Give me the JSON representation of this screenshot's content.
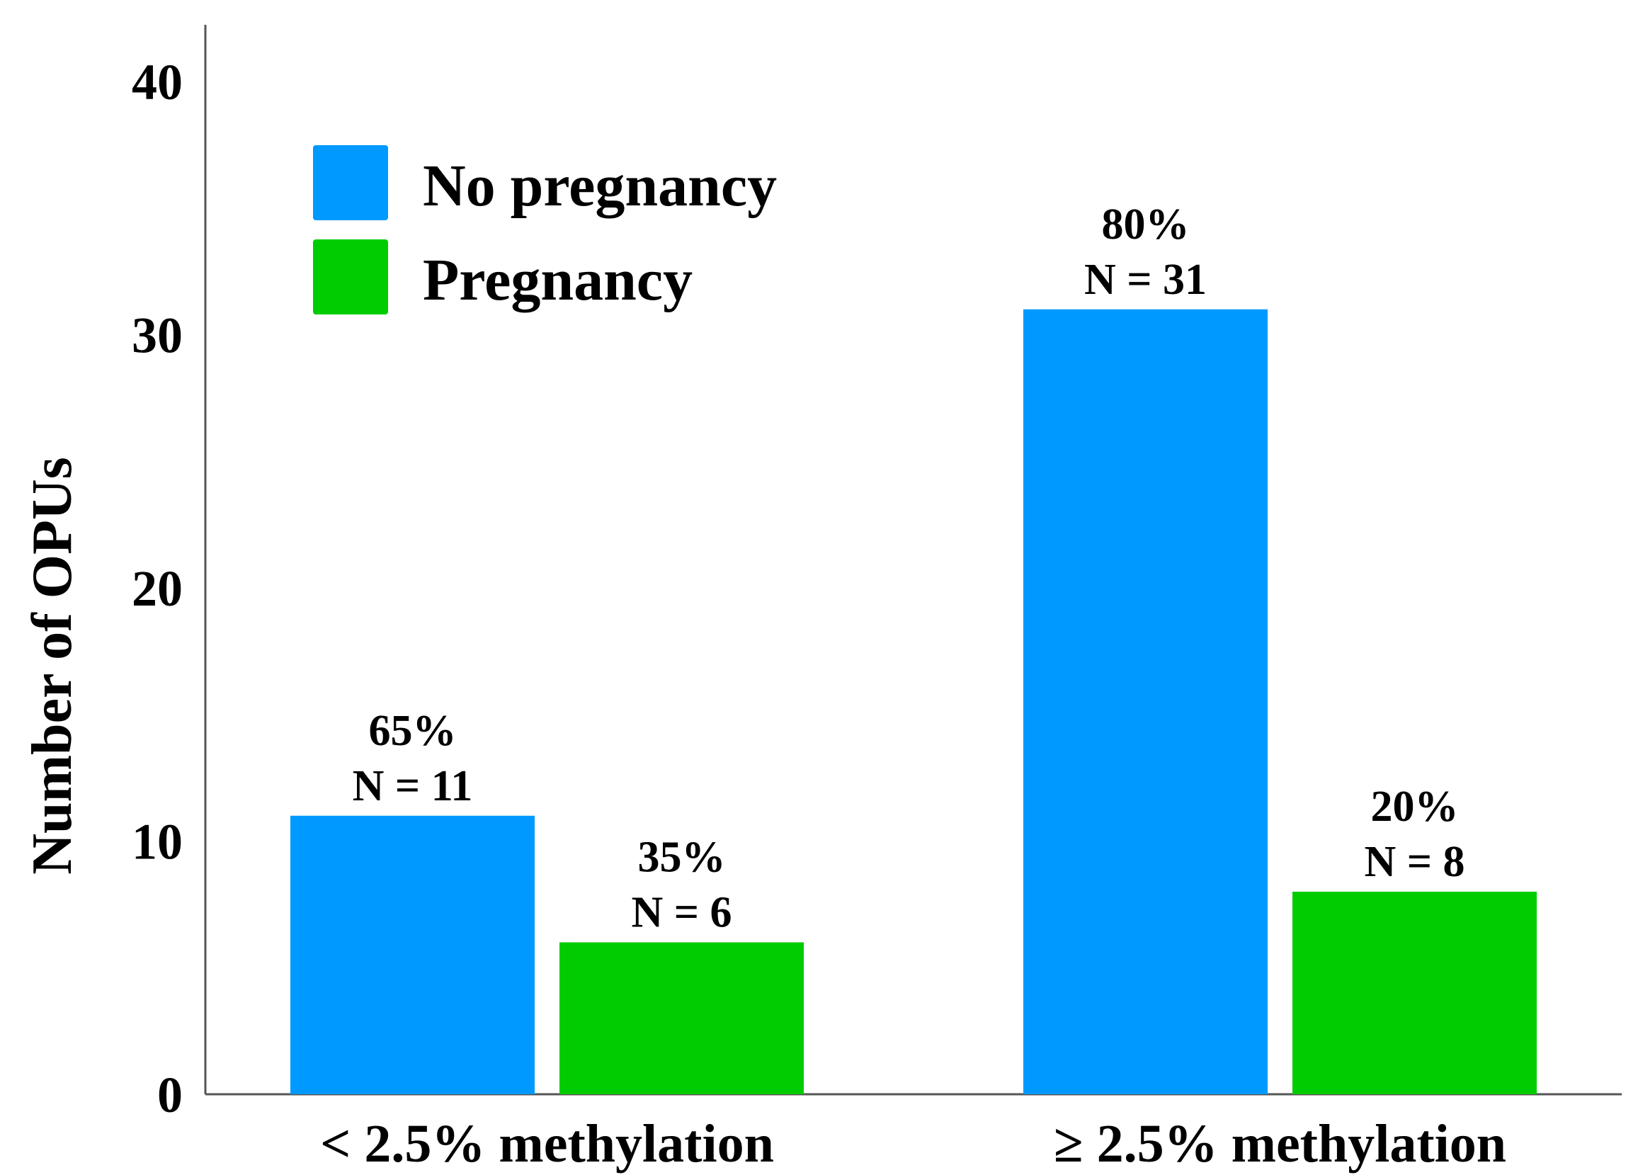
{
  "chart_data": {
    "type": "bar",
    "title": "",
    "xlabel": "",
    "ylabel": "Number of OPUs",
    "ylim": [
      0,
      42
    ],
    "yticks": [
      0,
      10,
      20,
      30,
      40
    ],
    "grid": false,
    "categories": [
      "< 2.5% methylation",
      "≥ 2.5% methylation"
    ],
    "legend_position": "top-left",
    "series": [
      {
        "name": "No pregnancy",
        "color": "#0099ff",
        "values": [
          11,
          31
        ],
        "labels": [
          {
            "pct": "65%",
            "n": "N = 11"
          },
          {
            "pct": "80%",
            "n": "N = 31"
          }
        ]
      },
      {
        "name": "Pregnancy",
        "color": "#00cc00",
        "values": [
          6,
          8
        ],
        "labels": [
          {
            "pct": "35%",
            "n": "N = 6"
          },
          {
            "pct": "20%",
            "n": "N = 8"
          }
        ]
      }
    ]
  }
}
